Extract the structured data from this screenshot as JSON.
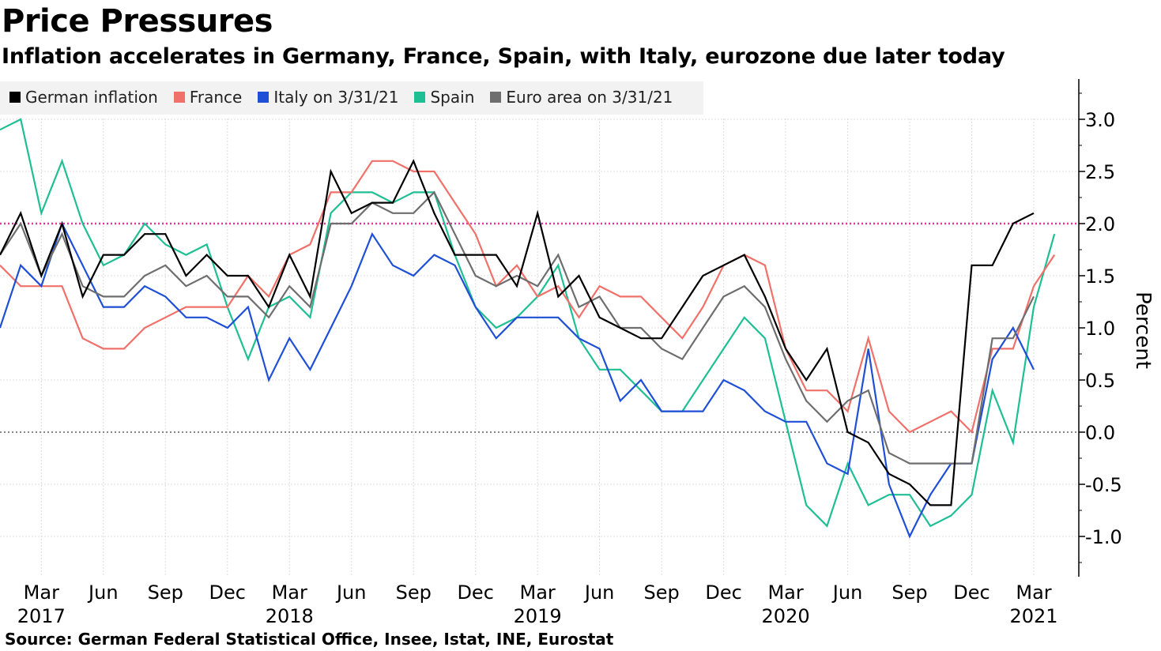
{
  "header": {
    "title": "Price Pressures",
    "subtitle": "Inflation accelerates in Germany, France, Spain, with Italy, eurozone due later today"
  },
  "footer": {
    "source": "Source: German Federal Statistical Office, Insee, Istat, INE, Eurostat"
  },
  "legend": [
    {
      "label": "German inflation",
      "color": "#000000"
    },
    {
      "label": "France",
      "color": "#f0706a"
    },
    {
      "label": "Italy on 3/31/21",
      "color": "#1f4fd6"
    },
    {
      "label": "Spain",
      "color": "#1fbf94"
    },
    {
      "label": "Euro area on 3/31/21",
      "color": "#6e6e6e"
    }
  ],
  "chart_data": {
    "type": "line",
    "title": "Price Pressures",
    "subtitle": "Inflation accelerates in Germany, France, Spain, with Italy, eurozone due later today",
    "ylabel": "Percent",
    "xlabel": "",
    "ylim": [
      -1.4,
      3.4
    ],
    "y_ticks": [
      3.0,
      2.5,
      2.0,
      1.5,
      1.0,
      0.5,
      0.0,
      -0.5,
      -1.0
    ],
    "y_tick_labels": [
      "3.0",
      "2.5",
      "2.0",
      "1.5",
      "1.0",
      "0.5",
      "0.0",
      "-0.5",
      "-1.0"
    ],
    "reference_lines": [
      {
        "value": 2.0,
        "color": "#e0339c",
        "style": "dotted"
      },
      {
        "value": 0.0,
        "color": "#888888",
        "style": "dotted"
      }
    ],
    "x_ticks": [
      {
        "month_index": 2,
        "label": "Mar",
        "year": "2017"
      },
      {
        "month_index": 5,
        "label": "Jun",
        "year": ""
      },
      {
        "month_index": 8,
        "label": "Sep",
        "year": ""
      },
      {
        "month_index": 11,
        "label": "Dec",
        "year": ""
      },
      {
        "month_index": 14,
        "label": "Mar",
        "year": "2018"
      },
      {
        "month_index": 17,
        "label": "Jun",
        "year": ""
      },
      {
        "month_index": 20,
        "label": "Sep",
        "year": ""
      },
      {
        "month_index": 23,
        "label": "Dec",
        "year": ""
      },
      {
        "month_index": 26,
        "label": "Mar",
        "year": "2019"
      },
      {
        "month_index": 29,
        "label": "Jun",
        "year": ""
      },
      {
        "month_index": 32,
        "label": "Sep",
        "year": ""
      },
      {
        "month_index": 35,
        "label": "Dec",
        "year": ""
      },
      {
        "month_index": 38,
        "label": "Mar",
        "year": "2020"
      },
      {
        "month_index": 41,
        "label": "Jun",
        "year": ""
      },
      {
        "month_index": 44,
        "label": "Sep",
        "year": ""
      },
      {
        "month_index": 47,
        "label": "Dec",
        "year": ""
      },
      {
        "month_index": 50,
        "label": "Mar",
        "year": "2021"
      }
    ],
    "x_start": "Jan 2017",
    "x_end": "Mar 2021",
    "series": [
      {
        "name": "German inflation",
        "color": "#000000",
        "values": [
          1.7,
          2.1,
          1.5,
          2.0,
          1.3,
          1.7,
          1.7,
          1.9,
          1.9,
          1.5,
          1.7,
          1.5,
          1.5,
          1.2,
          1.7,
          1.3,
          2.5,
          2.1,
          2.2,
          2.2,
          2.6,
          2.1,
          1.7,
          1.7,
          1.7,
          1.4,
          2.1,
          1.3,
          1.5,
          1.1,
          1.0,
          0.9,
          0.9,
          1.2,
          1.5,
          1.6,
          1.7,
          1.3,
          0.8,
          0.5,
          0.8,
          0.0,
          -0.1,
          -0.4,
          -0.5,
          -0.7,
          -0.7,
          1.6,
          1.6,
          2.0,
          2.1
        ]
      },
      {
        "name": "France",
        "color": "#f0706a",
        "values": [
          1.6,
          1.4,
          1.4,
          1.4,
          0.9,
          0.8,
          0.8,
          1.0,
          1.1,
          1.2,
          1.2,
          1.2,
          1.5,
          1.3,
          1.7,
          1.8,
          2.3,
          2.3,
          2.6,
          2.6,
          2.5,
          2.5,
          2.2,
          1.9,
          1.4,
          1.6,
          1.3,
          1.4,
          1.1,
          1.4,
          1.3,
          1.3,
          1.1,
          0.9,
          1.2,
          1.6,
          1.7,
          1.6,
          0.8,
          0.4,
          0.4,
          0.2,
          0.9,
          0.2,
          0.0,
          0.1,
          0.2,
          0.0,
          0.8,
          0.8,
          1.4,
          1.7
        ]
      },
      {
        "name": "Italy on 3/31/21",
        "color": "#1f4fd6",
        "values": [
          1.0,
          1.6,
          1.4,
          2.0,
          1.6,
          1.2,
          1.2,
          1.4,
          1.3,
          1.1,
          1.1,
          1.0,
          1.2,
          0.5,
          0.9,
          0.6,
          1.0,
          1.4,
          1.9,
          1.6,
          1.5,
          1.7,
          1.6,
          1.2,
          0.9,
          1.1,
          1.1,
          1.1,
          0.9,
          0.8,
          0.3,
          0.5,
          0.2,
          0.2,
          0.2,
          0.5,
          0.4,
          0.2,
          0.1,
          0.1,
          -0.3,
          -0.4,
          0.8,
          -0.5,
          -1.0,
          -0.6,
          -0.3,
          -0.3,
          0.7,
          1.0,
          0.6
        ]
      },
      {
        "name": "Spain",
        "color": "#1fbf94",
        "values": [
          2.9,
          3.0,
          2.1,
          2.6,
          2.0,
          1.6,
          1.7,
          2.0,
          1.8,
          1.7,
          1.8,
          1.2,
          0.7,
          1.2,
          1.3,
          1.1,
          2.1,
          2.3,
          2.3,
          2.2,
          2.3,
          2.3,
          1.7,
          1.2,
          1.0,
          1.1,
          1.3,
          1.6,
          0.9,
          0.6,
          0.6,
          0.4,
          0.2,
          0.2,
          0.5,
          0.8,
          1.1,
          0.9,
          0.1,
          -0.7,
          -0.9,
          -0.3,
          -0.7,
          -0.6,
          -0.6,
          -0.9,
          -0.8,
          -0.6,
          0.4,
          -0.1,
          1.2,
          1.9
        ]
      },
      {
        "name": "Euro area on 3/31/21",
        "color": "#6e6e6e",
        "values": [
          1.7,
          2.0,
          1.5,
          1.9,
          1.4,
          1.3,
          1.3,
          1.5,
          1.6,
          1.4,
          1.5,
          1.3,
          1.3,
          1.1,
          1.4,
          1.2,
          2.0,
          2.0,
          2.2,
          2.1,
          2.1,
          2.3,
          1.9,
          1.5,
          1.4,
          1.5,
          1.4,
          1.7,
          1.2,
          1.3,
          1.0,
          1.0,
          0.8,
          0.7,
          1.0,
          1.3,
          1.4,
          1.2,
          0.7,
          0.3,
          0.1,
          0.3,
          0.4,
          -0.2,
          -0.3,
          -0.3,
          -0.3,
          -0.3,
          0.9,
          0.9,
          1.3
        ]
      }
    ]
  }
}
